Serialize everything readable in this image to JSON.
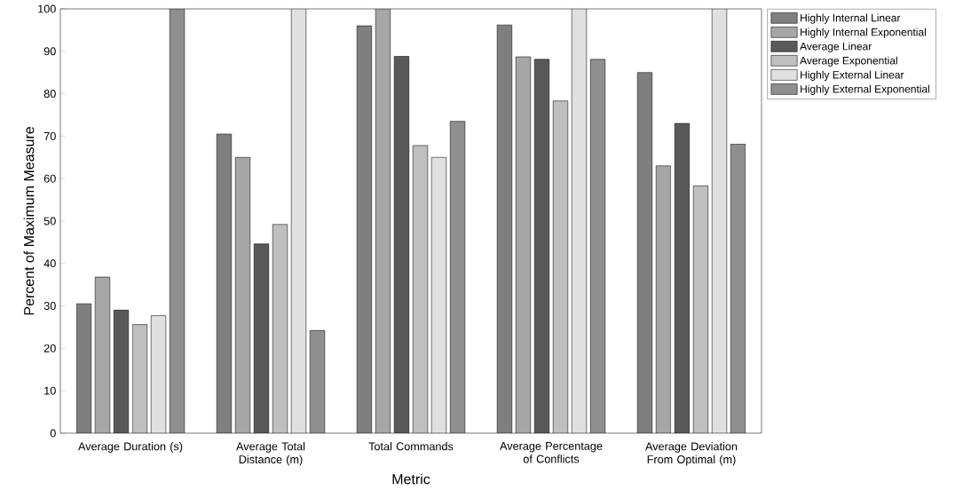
{
  "chart_data": {
    "type": "bar",
    "xlabel": "Metric",
    "ylabel": "Percent of Maximum Measure",
    "categories": [
      "Average Duration (s)",
      "Average Total Distance (m)",
      "Total Commands",
      "Average Percentage of Conflicts",
      "Average Deviation From Optimal (m)"
    ],
    "series": [
      {
        "name": "Highly Internal Linear",
        "color": "#7f7f7f",
        "values": [
          30.5,
          70.5,
          96,
          96.2,
          85
        ]
      },
      {
        "name": "Highly Internal Exponential",
        "color": "#a6a6a6",
        "values": [
          36.8,
          65,
          100,
          88.7,
          63
        ]
      },
      {
        "name": "Average Linear",
        "color": "#595959",
        "values": [
          29,
          44.6,
          88.8,
          88.1,
          73
        ]
      },
      {
        "name": "Average Exponential",
        "color": "#bfbfbf",
        "values": [
          25.6,
          49.2,
          67.8,
          78.3,
          58.3
        ]
      },
      {
        "name": "Highly External Linear",
        "color": "#e0e0e0",
        "values": [
          27.7,
          100,
          65,
          100,
          100
        ]
      },
      {
        "name": "Highly External Exponential",
        "color": "#8f8f8f",
        "values": [
          100,
          24.2,
          73.5,
          88.1,
          68.1
        ]
      }
    ],
    "ylim": [
      0,
      100
    ],
    "yticks": [
      0,
      10,
      20,
      30,
      40,
      50,
      60,
      70,
      80,
      90,
      100
    ],
    "grid": false,
    "legend": "top right"
  }
}
